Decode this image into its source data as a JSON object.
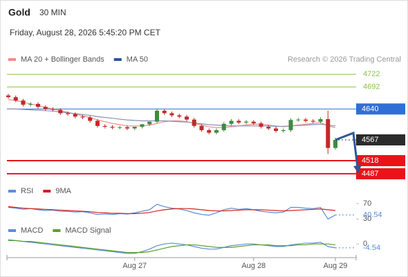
{
  "header": {
    "symbol": "Gold",
    "interval": "30 MIN",
    "datetime": "Friday, August 28, 2026 5:45:20 PM CET",
    "credit": "Research © 2026 Trading Central"
  },
  "chart_data": [
    {
      "type": "candlestick",
      "categories": [
        null,
        null,
        null,
        null,
        null,
        null,
        null,
        null,
        null,
        null,
        null,
        null,
        null,
        null,
        null,
        null,
        null,
        "Aug 27",
        null,
        null,
        null,
        null,
        null,
        null,
        null,
        null,
        null,
        null,
        null,
        null,
        null,
        null,
        null,
        "Aug 28",
        null,
        null,
        null,
        null,
        null,
        null,
        null,
        null,
        null,
        null,
        "Aug 29"
      ],
      "open": [
        4672,
        4668,
        4660,
        4650,
        4652,
        4645,
        4640,
        4638,
        4630,
        4628,
        4622,
        4620,
        4612,
        4600,
        4598,
        4596,
        4597,
        4594,
        4598,
        4604,
        4610,
        4636,
        4630,
        4625,
        4622,
        4615,
        4600,
        4590,
        4584,
        4590,
        4605,
        4612,
        4608,
        4610,
        4606,
        4598,
        4594,
        4588,
        4590,
        4614,
        4615,
        4612,
        4610,
        4616,
        4548
      ],
      "high": [
        4676,
        4672,
        4664,
        4656,
        4656,
        4649,
        4644,
        4642,
        4634,
        4632,
        4626,
        4624,
        4616,
        4604,
        4602,
        4600,
        4601,
        4598,
        4602,
        4608,
        4640,
        4640,
        4634,
        4629,
        4626,
        4619,
        4604,
        4594,
        4594,
        4609,
        4616,
        4616,
        4614,
        4614,
        4610,
        4602,
        4598,
        4594,
        4618,
        4619,
        4619,
        4616,
        4620,
        4636,
        4572
      ],
      "low": [
        4664,
        4656,
        4646,
        4646,
        4641,
        4636,
        4634,
        4626,
        4624,
        4618,
        4616,
        4608,
        4596,
        4594,
        4592,
        4592,
        4590,
        4590,
        4594,
        4600,
        4606,
        4626,
        4621,
        4618,
        4611,
        4596,
        4586,
        4580,
        4580,
        4586,
        4601,
        4604,
        4604,
        4602,
        4594,
        4590,
        4584,
        4584,
        4586,
        4610,
        4608,
        4606,
        4606,
        4534,
        4544
      ],
      "close": [
        4668,
        4660,
        4650,
        4652,
        4645,
        4640,
        4638,
        4630,
        4628,
        4622,
        4620,
        4612,
        4600,
        4598,
        4596,
        4597,
        4594,
        4598,
        4604,
        4610,
        4636,
        4630,
        4625,
        4622,
        4615,
        4600,
        4590,
        4584,
        4590,
        4605,
        4612,
        4608,
        4610,
        4606,
        4598,
        4594,
        4588,
        4590,
        4614,
        4615,
        4612,
        4610,
        4616,
        4548,
        4567
      ],
      "up_color": "#3d8b3d",
      "down_color": "#c62828",
      "series": [
        {
          "name": "MA 20 + Bollinger Bands",
          "color": "#f28b8b",
          "values": [
            4662,
            4660,
            4656,
            4652,
            4648,
            4644,
            4640,
            4636,
            4632,
            4628,
            4624,
            4620,
            4614,
            4610,
            4606,
            4603,
            4600,
            4600,
            4600,
            4602,
            4606,
            4610,
            4612,
            4612,
            4610,
            4606,
            4602,
            4598,
            4596,
            4596,
            4598,
            4600,
            4602,
            4604,
            4604,
            4602,
            4600,
            4598,
            4600,
            4602,
            4604,
            4606,
            4608,
            4600,
            4596
          ]
        },
        {
          "name": "MA 50",
          "color": "#8a8fb5",
          "values": [
            4640,
            4640,
            4639,
            4638,
            4637,
            4636,
            4635,
            4633,
            4631,
            4629,
            4627,
            4625,
            4622,
            4620,
            4618,
            4616,
            4614,
            4613,
            4612,
            4612,
            4612,
            4612,
            4611,
            4610,
            4609,
            4607,
            4605,
            4603,
            4602,
            4601,
            4600,
            4600,
            4600,
            4600,
            4600,
            4600,
            4599,
            4599,
            4600,
            4601,
            4602,
            4603,
            4604,
            4602,
            4600
          ]
        }
      ],
      "legend_colors": [
        "#f28b8b",
        "#2f5597"
      ],
      "levels": [
        {
          "value": 4722,
          "color": "#8bc34a",
          "boxed": false
        },
        {
          "value": 4692,
          "color": "#8bc34a",
          "boxed": false
        },
        {
          "value": 4640,
          "color": "#2f6fd6",
          "boxed": true
        },
        {
          "value": 4518,
          "color": "#e8141a",
          "boxed": true
        },
        {
          "value": 4487,
          "color": "#e8141a",
          "boxed": true
        }
      ],
      "ylim": [
        4464,
        4742
      ]
    },
    {
      "type": "line",
      "series": [
        {
          "name": "RSI",
          "color": "#5b8dd6",
          "values": [
            60,
            58,
            55,
            57,
            54,
            52,
            53,
            50,
            50,
            48,
            49,
            46,
            42,
            43,
            42,
            44,
            43,
            46,
            50,
            54,
            68,
            62,
            58,
            56,
            52,
            46,
            42,
            40,
            46,
            54,
            58,
            55,
            57,
            54,
            50,
            48,
            46,
            48,
            60,
            60,
            58,
            57,
            60,
            30,
            40.54
          ]
        },
        {
          "name": "9MA",
          "color": "#d61f1f",
          "values": [
            62,
            60,
            58,
            57,
            56,
            55,
            54,
            53,
            52,
            51,
            50,
            49,
            47,
            46,
            45,
            45,
            44,
            44,
            45,
            47,
            51,
            54,
            56,
            57,
            57,
            56,
            54,
            52,
            51,
            51,
            52,
            53,
            54,
            54,
            54,
            53,
            52,
            51,
            52,
            53,
            54,
            55,
            56,
            54,
            52
          ]
        }
      ],
      "ylim": [
        27,
        77
      ],
      "yticks": [
        70,
        30
      ]
    },
    {
      "type": "line",
      "series": [
        {
          "name": "MACD",
          "color": "#5b8dd6",
          "values": [
            5,
            4,
            3,
            2,
            1,
            0,
            -1,
            -2,
            -3,
            -4,
            -5,
            -6,
            -7,
            -8,
            -9,
            -10,
            -11,
            -11,
            -9,
            -6,
            -2,
            0,
            1,
            0,
            -1,
            -3,
            -5,
            -6,
            -6,
            -4,
            -2,
            -1,
            0,
            0,
            -1,
            -2,
            -3,
            -3,
            -1,
            0,
            1,
            1,
            2,
            -3,
            -4.54
          ]
        },
        {
          "name": "MACD Signal",
          "color": "#5aa02c",
          "values": [
            4,
            4,
            3,
            3,
            2,
            1,
            0,
            -1,
            -2,
            -3,
            -4,
            -5,
            -6,
            -7,
            -8,
            -9,
            -10,
            -10,
            -10,
            -9,
            -7,
            -5,
            -3,
            -2,
            -1,
            -1,
            -2,
            -3,
            -4,
            -4,
            -4,
            -3,
            -2,
            -1,
            -1,
            -1,
            -2,
            -2,
            -2,
            -1,
            -1,
            0,
            0,
            0,
            -1
          ]
        }
      ],
      "ylim": [
        -16,
        10
      ],
      "yticks": [
        0
      ]
    }
  ]
}
